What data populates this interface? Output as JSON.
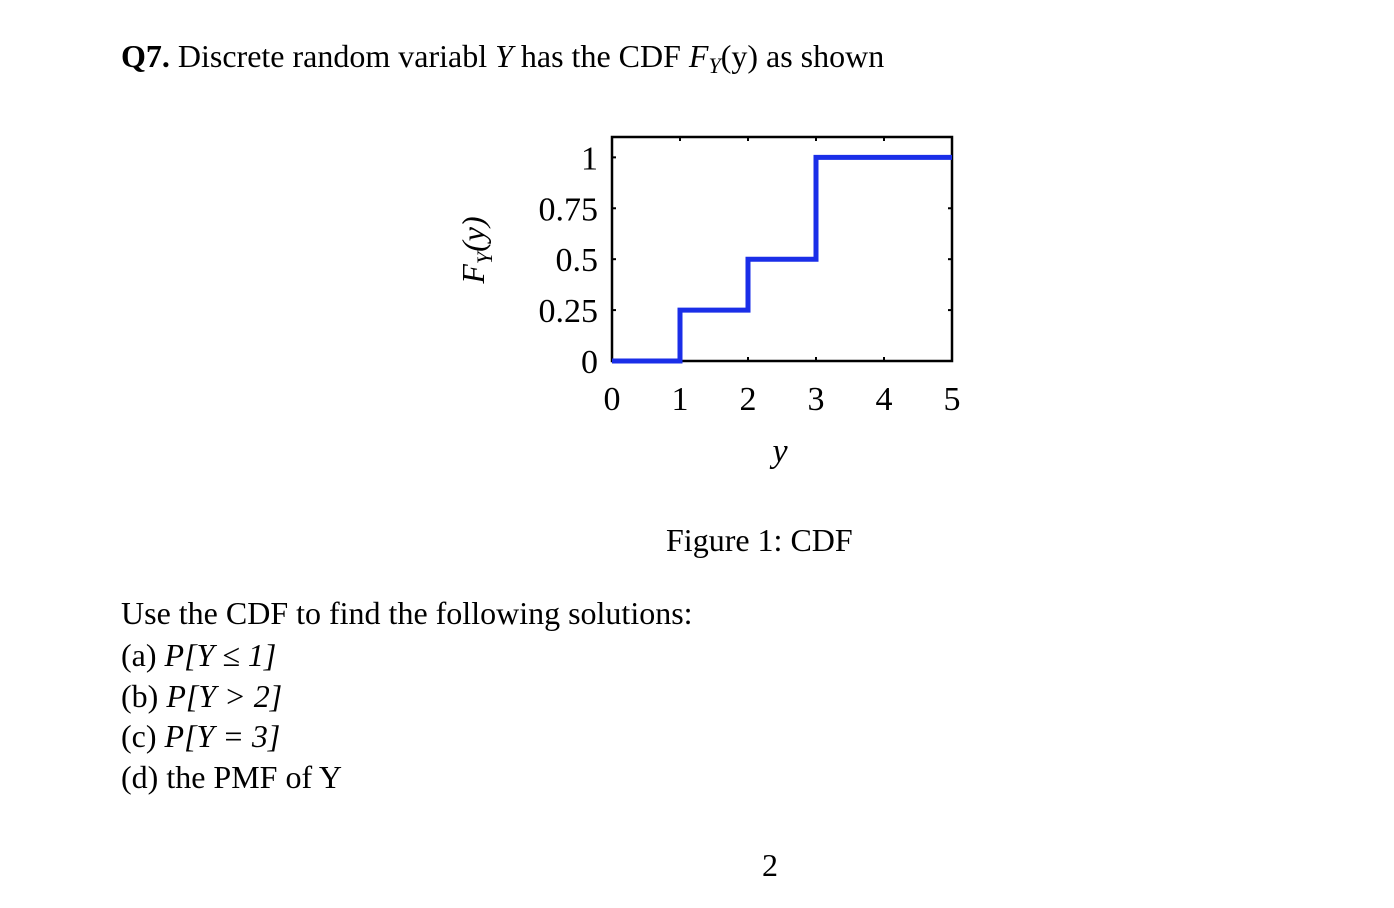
{
  "question": {
    "number": "Q7.",
    "text_before": "Discrete random variabl",
    "variable": "Y",
    "text_middle": "has the CDF",
    "function_name": "F",
    "function_subscript": "Y",
    "function_argument": "(y)",
    "text_after": "as shown"
  },
  "chart_data": {
    "type": "line",
    "step": true,
    "xlabel": "y",
    "ylabel": "F_Y(y)",
    "ylabel_main": "F",
    "ylabel_sub": "Y",
    "ylabel_arg": "(y)",
    "xlim": [
      0,
      5
    ],
    "ylim": [
      0,
      1.1
    ],
    "x_ticks": [
      0,
      1,
      2,
      3,
      4,
      5
    ],
    "x_tick_labels": [
      "0",
      "1",
      "2",
      "3",
      "4",
      "5"
    ],
    "y_ticks": [
      0,
      0.25,
      0.5,
      0.75,
      1
    ],
    "y_tick_labels": [
      "0",
      "0.25",
      "0.5",
      "0.75",
      "1"
    ],
    "grid": false,
    "series": [
      {
        "color": "#1a2ee8",
        "x": [
          0,
          1,
          1,
          2,
          2,
          3,
          3,
          5
        ],
        "y": [
          0,
          0,
          0.25,
          0.25,
          0.5,
          0.5,
          1,
          1
        ]
      }
    ]
  },
  "caption": "Figure 1: CDF",
  "instructions": "Use the CDF to find the following solutions:",
  "parts": [
    {
      "label": "(a)",
      "expr": "P[Y ≤ 1]"
    },
    {
      "label": "(b)",
      "expr": "P[Y > 2]"
    },
    {
      "label": "(c)",
      "expr": "P[Y = 3]"
    },
    {
      "label": "(d)",
      "expr": "the PMF of Y"
    }
  ],
  "page_number": "2"
}
